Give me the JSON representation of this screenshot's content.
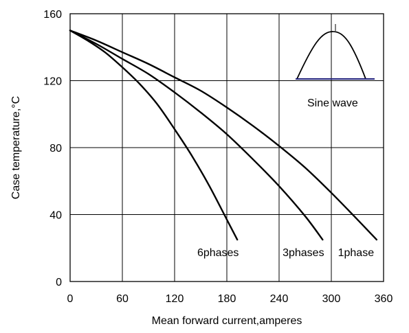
{
  "chart_data": {
    "type": "line",
    "xlabel": "Mean forward  current,amperes",
    "ylabel": "Case temperature,°C",
    "xlim": [
      0,
      360
    ],
    "ylim": [
      0,
      160
    ],
    "xticks": [
      0,
      60,
      120,
      180,
      240,
      300,
      360
    ],
    "yticks": [
      0,
      40,
      80,
      120,
      160
    ],
    "grid": true,
    "series": [
      {
        "name": "6phases",
        "x": [
          0,
          20,
          40,
          60,
          80,
          100,
          120,
          140,
          160,
          180,
          192
        ],
        "y": [
          150,
          144,
          137,
          128,
          118,
          106,
          91,
          75,
          57,
          37,
          25
        ]
      },
      {
        "name": "3phases",
        "x": [
          0,
          30,
          60,
          90,
          120,
          150,
          180,
          210,
          240,
          270,
          290
        ],
        "y": [
          150,
          142,
          133,
          124,
          113,
          101,
          88,
          73,
          57,
          39,
          25
        ]
      },
      {
        "name": "1phase",
        "x": [
          0,
          30,
          60,
          90,
          120,
          150,
          180,
          210,
          240,
          270,
          300,
          330,
          352
        ],
        "y": [
          150,
          144,
          137,
          130,
          122,
          114,
          104,
          93,
          81,
          68,
          53,
          37,
          25
        ]
      }
    ],
    "inset": {
      "label": "Sine wave",
      "baseline_color": "#1f1f7a"
    }
  }
}
